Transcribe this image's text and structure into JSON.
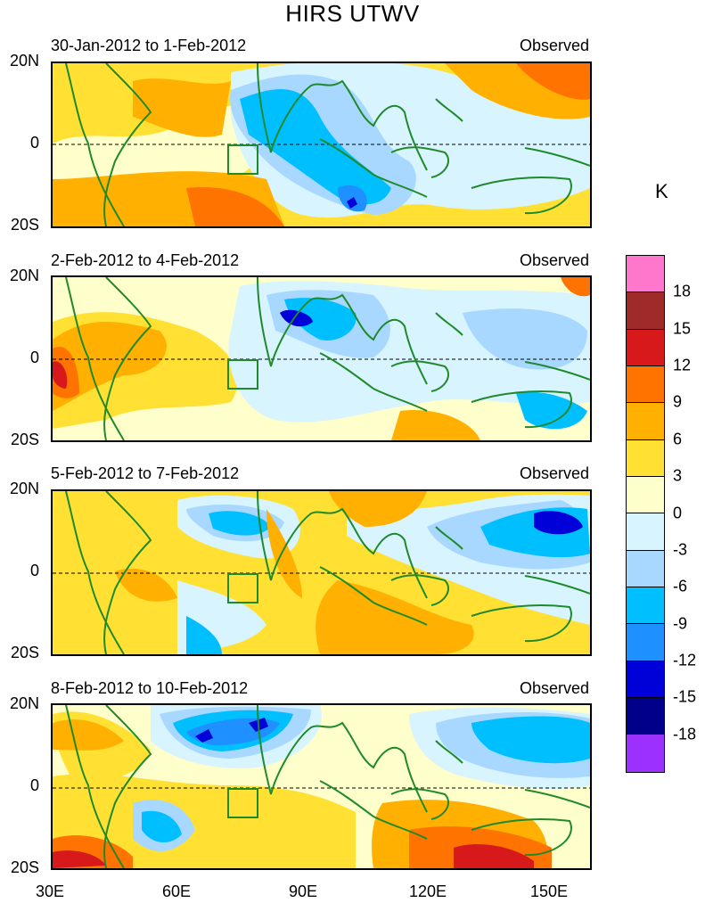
{
  "figure": {
    "title": "HIRS UTWV",
    "unit": "K",
    "x_tick_labels": [
      "30E",
      "60E",
      "90E",
      "120E",
      "150E"
    ],
    "y_tick_labels": [
      "20N",
      "0",
      "20S"
    ]
  },
  "panels": [
    {
      "period": "30-Jan-2012 to 1-Feb-2012",
      "label": "Observed"
    },
    {
      "period": "2-Feb-2012 to 4-Feb-2012",
      "label": "Observed"
    },
    {
      "period": "5-Feb-2012 to 7-Feb-2012",
      "label": "Observed"
    },
    {
      "period": "8-Feb-2012 to 10-Feb-2012",
      "label": "Observed"
    }
  ],
  "colorbar": {
    "labels": [
      "18",
      "15",
      "12",
      "9",
      "6",
      "3",
      "0",
      "-3",
      "-6",
      "-9",
      "-12",
      "-15",
      "-18"
    ],
    "colors": [
      "#ff77cc",
      "#9e2a2a",
      "#d7191c",
      "#ff7400",
      "#ffb000",
      "#ffe033",
      "#ffffcc",
      "#d8f4ff",
      "#a8d8ff",
      "#00bfff",
      "#1e90ff",
      "#0000d8",
      "#00008b",
      "#9b30ff"
    ]
  },
  "map_style": {
    "coast_color": "#1f8a2a",
    "domain_lon": [
      30,
      160
    ],
    "domain_lat": [
      -20,
      20
    ]
  }
}
